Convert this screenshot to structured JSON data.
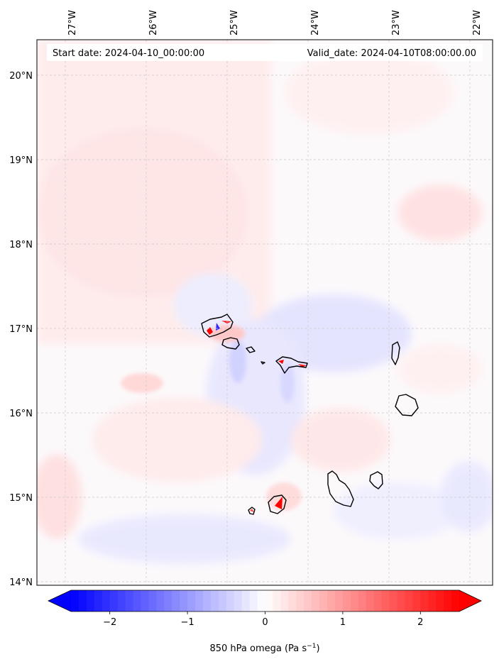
{
  "map": {
    "start_date": "Start date: 2024-04-10_00:00:00",
    "valid_date": "Valid_date: 2024-04-10T08:00:00.00",
    "lon_labels": [
      "27°W",
      "26°W",
      "25°W",
      "24°W",
      "23°W",
      "22°W"
    ],
    "lat_labels": [
      "20°N",
      "19°N",
      "18°N",
      "17°N",
      "16°N",
      "15°N",
      "14°N"
    ],
    "field": "850 hPa omega",
    "colors": {
      "negative": "#0000ff",
      "positive": "#ff0000",
      "neutral": "#ffffff",
      "coast": "#000000",
      "grid": "#c8c8c8"
    }
  },
  "colorbar": {
    "ticks": [
      "−2",
      "−1",
      "0",
      "1",
      "2"
    ],
    "tick_values": [
      -2,
      -1,
      0,
      1,
      2
    ],
    "range": [
      -2.5,
      2.5
    ],
    "extend": "both",
    "label_prefix": "850 hPa omega (Pa s",
    "label_sup": "−1",
    "label_suffix": ")"
  }
}
